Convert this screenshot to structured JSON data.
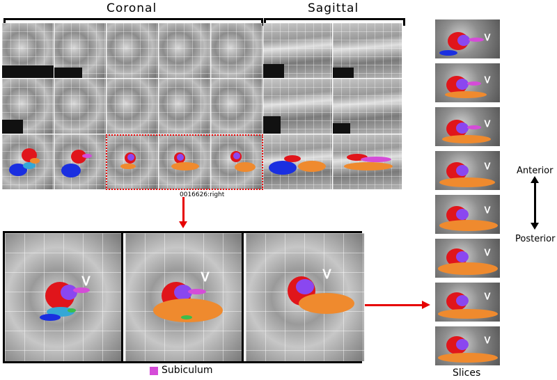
{
  "labels": {
    "coronal": "Coronal",
    "sagittal": "Sagittal",
    "slice_id": "0016626:right",
    "legend_subiculum": "Subiculum",
    "slices": "Slices",
    "anterior": "Anterior",
    "posterior": "Posterior"
  },
  "colors": {
    "subiculum": "#d54cd8",
    "arrow": "#e60000",
    "selection_box": "#e60000",
    "ca_red": "#e0151b",
    "dg_purple": "#8a47f0",
    "orange": "#ef8a2e",
    "blue": "#1a2fe0",
    "green": "#3bbd4c",
    "cyan": "#35a7d6"
  },
  "icons": [
    "arrowhead-marker-icon",
    "double-headed-vertical-arrow-icon",
    "right-arrow-icon",
    "down-arrow-icon"
  ]
}
